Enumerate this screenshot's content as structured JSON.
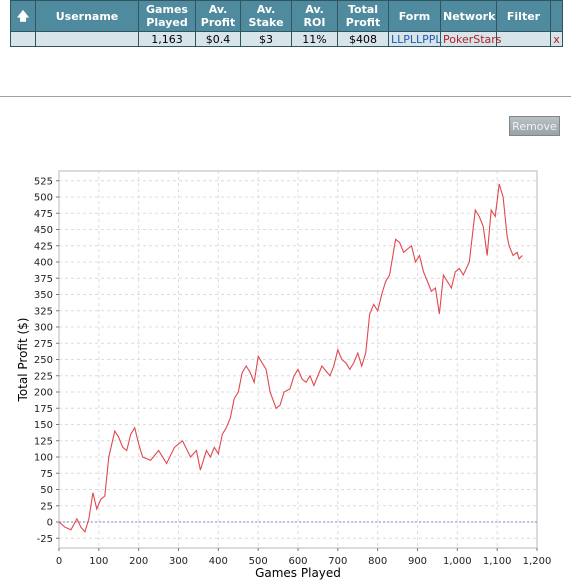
{
  "table": {
    "headers": {
      "sort_icon": "up-arrow-icon",
      "username": "Username",
      "games_played": [
        "Games",
        "Played"
      ],
      "av_profit": [
        "Av.",
        "Profit"
      ],
      "av_stake": [
        "Av.",
        "Stake"
      ],
      "av_roi": "Av. ROI",
      "total_profit": [
        "Total",
        "Profit"
      ],
      "form": "Form",
      "network": "Network",
      "filter": "Filter"
    },
    "row": {
      "username": "",
      "games_played": "1,163",
      "av_profit": "$0.4",
      "av_stake": "$3",
      "av_roi": "11%",
      "total_profit": "$408",
      "form": "LLPLLPPL",
      "network": "PokerStars",
      "filter": "",
      "remove_x": "x"
    }
  },
  "remove_button": "Remove",
  "colors": {
    "header_bg": "#4f8a9e",
    "row_bg": "#d7e4ea",
    "line": "#e0484e",
    "form_link": "#1f5bb5",
    "network_link": "#b0202a"
  },
  "chart_data": {
    "type": "line",
    "xlabel": "Games Played",
    "ylabel": "Total Profit ($)",
    "xlim": [
      0,
      1200
    ],
    "ylim": [
      -40,
      540
    ],
    "x_ticks": [
      "0",
      "100",
      "200",
      "300",
      "400",
      "500",
      "600",
      "700",
      "800",
      "900",
      "1,000",
      "1,100",
      "1,200"
    ],
    "x_tick_values": [
      0,
      100,
      200,
      300,
      400,
      500,
      600,
      700,
      800,
      900,
      1000,
      1100,
      1200
    ],
    "y_ticks": [
      "-25",
      "0",
      "25",
      "50",
      "75",
      "100",
      "125",
      "150",
      "175",
      "200",
      "225",
      "250",
      "275",
      "300",
      "325",
      "350",
      "375",
      "400",
      "425",
      "450",
      "475",
      "500",
      "525"
    ],
    "y_tick_values": [
      -25,
      0,
      25,
      50,
      75,
      100,
      125,
      150,
      175,
      200,
      225,
      250,
      275,
      300,
      325,
      350,
      375,
      400,
      425,
      450,
      475,
      500,
      525
    ],
    "grid": true,
    "zero_line": true,
    "series": [
      {
        "x": [
          0,
          15,
          30,
          45,
          55,
          65,
          75,
          85,
          95,
          105,
          115,
          125,
          140,
          150,
          160,
          170,
          180,
          190,
          200,
          210,
          230,
          250,
          270,
          290,
          310,
          330,
          345,
          355,
          370,
          380,
          390,
          400,
          410,
          420,
          430,
          440,
          450,
          460,
          470,
          480,
          490,
          500,
          510,
          520,
          530,
          545,
          555,
          565,
          580,
          590,
          600,
          610,
          620,
          630,
          640,
          660,
          680,
          690,
          700,
          710,
          720,
          730,
          740,
          750,
          760,
          770,
          780,
          790,
          800,
          810,
          820,
          830,
          845,
          855,
          865,
          875,
          885,
          895,
          905,
          915,
          925,
          935,
          945,
          955,
          965,
          975,
          985,
          995,
          1005,
          1015,
          1030,
          1045,
          1055,
          1065,
          1075,
          1085,
          1095,
          1105,
          1115,
          1120,
          1125,
          1130,
          1140,
          1150,
          1155,
          1163
        ],
        "y": [
          0,
          -8,
          -12,
          5,
          -8,
          -15,
          5,
          45,
          20,
          35,
          40,
          100,
          140,
          130,
          115,
          110,
          135,
          145,
          120,
          100,
          95,
          110,
          90,
          115,
          125,
          100,
          110,
          80,
          110,
          100,
          115,
          105,
          135,
          145,
          160,
          190,
          200,
          230,
          240,
          230,
          215,
          255,
          245,
          235,
          200,
          175,
          180,
          200,
          205,
          225,
          235,
          220,
          215,
          225,
          210,
          240,
          225,
          240,
          265,
          250,
          245,
          235,
          245,
          260,
          240,
          260,
          320,
          335,
          325,
          350,
          370,
          380,
          435,
          430,
          415,
          420,
          425,
          400,
          410,
          385,
          370,
          355,
          360,
          320,
          380,
          370,
          360,
          385,
          390,
          380,
          400,
          480,
          470,
          455,
          410,
          480,
          470,
          520,
          500,
          470,
          440,
          425,
          410,
          415,
          405,
          410
        ]
      }
    ]
  }
}
